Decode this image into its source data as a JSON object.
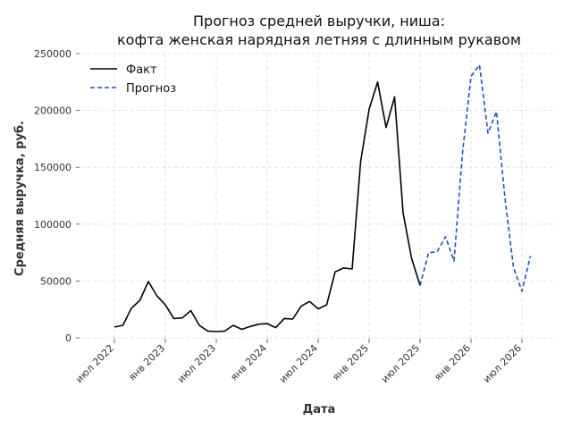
{
  "chart_data": {
    "type": "line",
    "title_lines": [
      "Прогноз средней выручки, ниша:",
      "кофта женская нарядная летняя с длинным рукавом"
    ],
    "xlabel": "Дата",
    "ylabel": "Средняя выручка, руб.",
    "ylim": [
      0,
      250000
    ],
    "yticks": [
      0,
      50000,
      100000,
      150000,
      200000,
      250000
    ],
    "ytick_labels": [
      "0",
      "50000",
      "100000",
      "150000",
      "200000",
      "250000"
    ],
    "xticks": [
      "2022-07",
      "2023-01",
      "2023-07",
      "2024-01",
      "2024-07",
      "2025-01",
      "2025-07",
      "2026-01",
      "2026-07"
    ],
    "xtick_labels": [
      "июл 2022",
      "янв 2023",
      "июл 2023",
      "янв 2024",
      "июл 2024",
      "янв 2025",
      "июл 2025",
      "янв 2026",
      "июл 2026"
    ],
    "grid": true,
    "legend_position": "top-left",
    "series": [
      {
        "name": "Факт",
        "color": "#000000",
        "style": "solid",
        "x": [
          "2022-07",
          "2022-08",
          "2022-09",
          "2022-10",
          "2022-11",
          "2022-12",
          "2023-01",
          "2023-02",
          "2023-03",
          "2023-04",
          "2023-05",
          "2023-06",
          "2023-07",
          "2023-08",
          "2023-09",
          "2023-10",
          "2023-11",
          "2023-12",
          "2024-01",
          "2024-02",
          "2024-03",
          "2024-04",
          "2024-05",
          "2024-06",
          "2024-07",
          "2024-08",
          "2024-09",
          "2024-10",
          "2024-11",
          "2024-12",
          "2025-01",
          "2025-02",
          "2025-03",
          "2025-04",
          "2025-05",
          "2025-06",
          "2025-07"
        ],
        "values": [
          9500,
          11000,
          26000,
          33000,
          49500,
          37000,
          29000,
          17000,
          17500,
          24000,
          11000,
          6000,
          5500,
          6000,
          11000,
          7500,
          10000,
          12000,
          12500,
          9000,
          17000,
          16500,
          28000,
          32000,
          25500,
          29000,
          58000,
          61500,
          60500,
          155000,
          201000,
          225000,
          185000,
          212000,
          110000,
          70000,
          46000
        ]
      },
      {
        "name": "Прогноз",
        "color": "#1f4fcc",
        "style": "dashed",
        "x": [
          "2025-08",
          "2025-09",
          "2025-10",
          "2025-11",
          "2025-12",
          "2026-01",
          "2026-02",
          "2026-03",
          "2026-04",
          "2026-05",
          "2026-06",
          "2026-07",
          "2026-08"
        ],
        "values": [
          75000,
          75500,
          89000,
          67500,
          163000,
          230000,
          240000,
          180000,
          199000,
          123000,
          62000,
          41000,
          72000
        ]
      }
    ]
  }
}
